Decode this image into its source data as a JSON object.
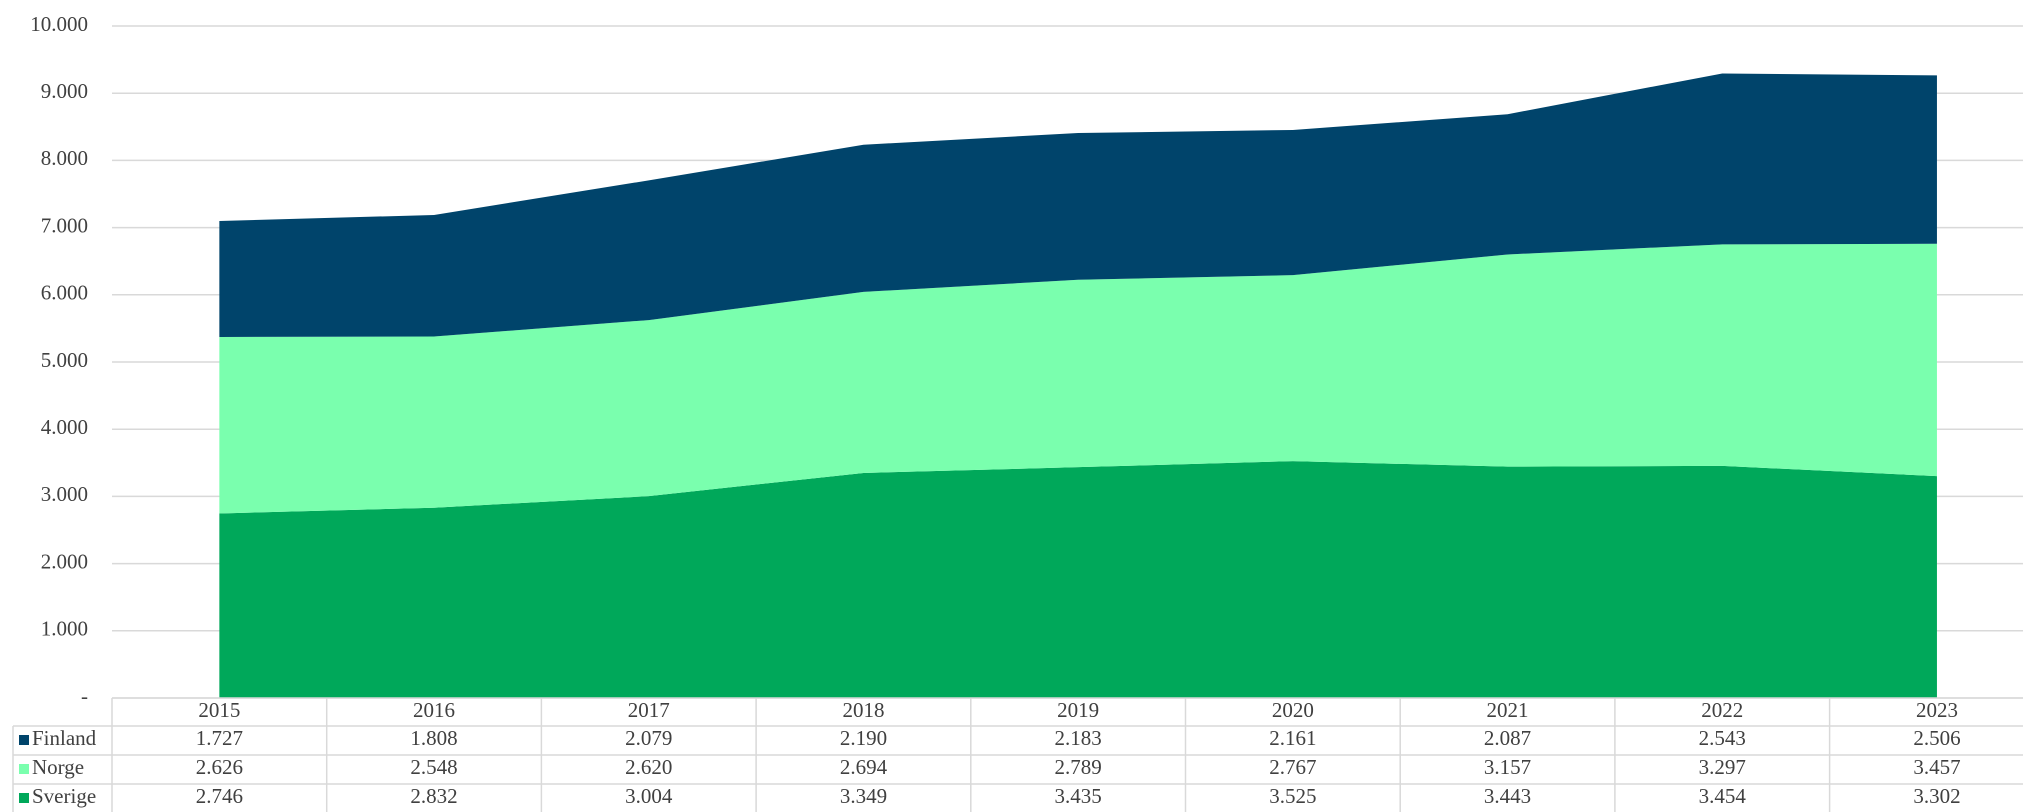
{
  "chart_data": {
    "type": "stacked_area",
    "categories": [
      "2015",
      "2016",
      "2017",
      "2018",
      "2019",
      "2020",
      "2021",
      "2022",
      "2023"
    ],
    "series": [
      {
        "name": "Finland",
        "color": "#00446b",
        "values": [
          1727,
          1808,
          2079,
          2190,
          2183,
          2161,
          2087,
          2543,
          2506
        ],
        "value_labels": [
          "1.727",
          "1.808",
          "2.079",
          "2.190",
          "2.183",
          "2.161",
          "2.087",
          "2.543",
          "2.506"
        ]
      },
      {
        "name": "Norge",
        "color": "#7affae",
        "values": [
          2626,
          2548,
          2620,
          2694,
          2789,
          2767,
          3157,
          3297,
          3457
        ],
        "value_labels": [
          "2.626",
          "2.548",
          "2.620",
          "2.694",
          "2.789",
          "2.767",
          "3.157",
          "3.297",
          "3.457"
        ]
      },
      {
        "name": "Sverige",
        "color": "#00a85a",
        "values": [
          2746,
          2832,
          3004,
          3349,
          3435,
          3525,
          3443,
          3454,
          3302
        ],
        "value_labels": [
          "2.746",
          "2.832",
          "3.004",
          "3.349",
          "3.435",
          "3.525",
          "3.443",
          "3.454",
          "3.302"
        ]
      }
    ],
    "ylim": [
      0,
      10000
    ],
    "yticks": [
      {
        "value": 0,
        "label": "-"
      },
      {
        "value": 1000,
        "label": "1.000"
      },
      {
        "value": 2000,
        "label": "2.000"
      },
      {
        "value": 3000,
        "label": "3.000"
      },
      {
        "value": 4000,
        "label": "4.000"
      },
      {
        "value": 5000,
        "label": "5.000"
      },
      {
        "value": 6000,
        "label": "6.000"
      },
      {
        "value": 7000,
        "label": "7.000"
      },
      {
        "value": 8000,
        "label": "8.000"
      },
      {
        "value": 9000,
        "label": "9.000"
      },
      {
        "value": 10000,
        "label": "10.000"
      }
    ],
    "grid": true,
    "legend": "table"
  }
}
